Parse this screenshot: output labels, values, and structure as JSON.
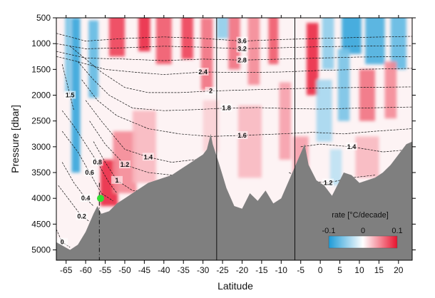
{
  "chart_data": {
    "type": "heatmap",
    "title": "",
    "xlabel": "Latitude",
    "ylabel": "Pressure [dbar]",
    "xlim": [
      -67.5,
      23.5
    ],
    "ylim": [
      5200,
      500
    ],
    "x_ticks": [
      -65,
      -60,
      -55,
      -50,
      -45,
      -40,
      -35,
      -30,
      -25,
      -20,
      -15,
      -10,
      -5,
      0,
      5,
      10,
      15,
      20
    ],
    "y_ticks": [
      500,
      1000,
      1500,
      2000,
      2500,
      3000,
      3500,
      4000,
      4500,
      5000
    ],
    "colorbar": {
      "label": "rate [°C/decade]",
      "min": -0.1,
      "max": 0.1,
      "ticks": [
        -0.1,
        0,
        0.1
      ],
      "colors": [
        "#1e9bd7",
        "#ffffff",
        "#e8122d"
      ]
    },
    "bottom_color": "#7f7f7f",
    "vertical_lines": [
      -26.5,
      -6.5
    ],
    "dashed_line_x": -56.5,
    "marker": {
      "x": -56.2,
      "y": 4000,
      "color": "#33dd33"
    },
    "bathymetry": [
      [
        -67.5,
        4850
      ],
      [
        -64,
        5000
      ],
      [
        -62,
        4900
      ],
      [
        -60,
        4650
      ],
      [
        -58,
        4300
      ],
      [
        -57,
        4150
      ],
      [
        -56,
        4300
      ],
      [
        -54,
        4250
      ],
      [
        -52,
        4100
      ],
      [
        -50,
        4000
      ],
      [
        -48,
        3900
      ],
      [
        -46,
        3800
      ],
      [
        -44,
        3700
      ],
      [
        -42,
        3650
      ],
      [
        -40,
        3600
      ],
      [
        -38,
        3550
      ],
      [
        -36,
        3450
      ],
      [
        -34,
        3350
      ],
      [
        -32,
        3250
      ],
      [
        -30,
        3150
      ],
      [
        -29,
        3050
      ],
      [
        -28,
        2750
      ],
      [
        -27.5,
        2950
      ],
      [
        -26,
        3300
      ],
      [
        -24,
        3800
      ],
      [
        -22,
        4150
      ],
      [
        -20,
        4200
      ],
      [
        -18,
        3900
      ],
      [
        -16,
        4050
      ],
      [
        -14,
        3850
      ],
      [
        -12,
        4100
      ],
      [
        -10,
        4000
      ],
      [
        -8,
        3650
      ],
      [
        -6,
        3300
      ],
      [
        -4,
        2950
      ],
      [
        -3,
        3350
      ],
      [
        -1,
        3650
      ],
      [
        1,
        3750
      ],
      [
        3,
        3950
      ],
      [
        5,
        3650
      ],
      [
        6,
        3500
      ],
      [
        8,
        3550
      ],
      [
        10,
        3700
      ],
      [
        12,
        3650
      ],
      [
        14,
        3600
      ],
      [
        16,
        3500
      ],
      [
        18,
        3350
      ],
      [
        20,
        3150
      ],
      [
        22,
        2950
      ],
      [
        23.5,
        2900
      ]
    ],
    "contours": [
      {
        "value": "3.6",
        "points": [
          [
            -67.5,
            800
          ],
          [
            -60,
            950
          ],
          [
            -50,
            900
          ],
          [
            -40,
            870
          ],
          [
            -30,
            900
          ],
          [
            -20,
            950
          ],
          [
            -10,
            920
          ],
          [
            0,
            900
          ],
          [
            10,
            880
          ],
          [
            23.5,
            860
          ]
        ]
      },
      {
        "value": "3.2",
        "points": [
          [
            -67.5,
            1000
          ],
          [
            -60,
            1100
          ],
          [
            -50,
            1080
          ],
          [
            -40,
            1050
          ],
          [
            -30,
            1070
          ],
          [
            -20,
            1100
          ],
          [
            -10,
            1080
          ],
          [
            0,
            1060
          ],
          [
            10,
            1050
          ],
          [
            23.5,
            1040
          ]
        ]
      },
      {
        "value": "2.8",
        "points": [
          [
            -67.5,
            1150
          ],
          [
            -60,
            1280
          ],
          [
            -50,
            1300
          ],
          [
            -40,
            1330
          ],
          [
            -30,
            1300
          ],
          [
            -20,
            1320
          ],
          [
            -10,
            1300
          ],
          [
            0,
            1280
          ],
          [
            10,
            1260
          ],
          [
            23.5,
            1250
          ]
        ]
      },
      {
        "value": "2.4",
        "points": [
          [
            -67.5,
            1250
          ],
          [
            -62,
            1350
          ],
          [
            -55,
            1500
          ],
          [
            -48,
            1550
          ],
          [
            -40,
            1600
          ],
          [
            -30,
            1550
          ],
          [
            -20,
            1560
          ],
          [
            -10,
            1550
          ],
          [
            0,
            1520
          ],
          [
            10,
            1500
          ],
          [
            23.5,
            1480
          ]
        ]
      },
      {
        "value": "2",
        "points": [
          [
            -64,
            1050
          ],
          [
            -60,
            1300
          ],
          [
            -56,
            1550
          ],
          [
            -50,
            1850
          ],
          [
            -44,
            1950
          ],
          [
            -36,
            1950
          ],
          [
            -28,
            1920
          ],
          [
            -20,
            1900
          ],
          [
            -10,
            1880
          ],
          [
            0,
            1860
          ],
          [
            10,
            1850
          ],
          [
            23.5,
            1840
          ]
        ]
      },
      {
        "value": "1.8",
        "points": [
          [
            -62,
            1350
          ],
          [
            -58,
            1700
          ],
          [
            -54,
            2000
          ],
          [
            -48,
            2250
          ],
          [
            -40,
            2300
          ],
          [
            -32,
            2280
          ],
          [
            -24,
            2250
          ],
          [
            -16,
            2240
          ],
          [
            -8,
            2260
          ],
          [
            0,
            2270
          ],
          [
            10,
            2250
          ],
          [
            23.5,
            2230
          ]
        ]
      },
      {
        "value": "1.6",
        "points": [
          [
            -61,
            1700
          ],
          [
            -57,
            2100
          ],
          [
            -52,
            2400
          ],
          [
            -44,
            2650
          ],
          [
            -36,
            2750
          ],
          [
            -28,
            2800
          ],
          [
            -20,
            2780
          ],
          [
            -10,
            2750
          ],
          [
            -2,
            2720
          ],
          [
            6,
            2750
          ],
          [
            14,
            2700
          ],
          [
            23.5,
            2650
          ]
        ]
      },
      {
        "value": "1.4",
        "points": [
          [
            -60,
            2100
          ],
          [
            -56,
            2500
          ],
          [
            -50,
            3050
          ],
          [
            -44,
            3200
          ],
          [
            -38,
            3300
          ],
          [
            -32,
            3250
          ]
        ]
      },
      {
        "value": "1.4",
        "points": [
          [
            -5,
            3000
          ],
          [
            0,
            2950
          ],
          [
            8,
            3000
          ],
          [
            16,
            3100
          ],
          [
            23.5,
            3050
          ]
        ]
      },
      {
        "value": "1.2",
        "points": [
          [
            -59,
            2500
          ],
          [
            -55,
            2950
          ],
          [
            -50,
            3350
          ],
          [
            -44,
            3500
          ],
          [
            -38,
            3550
          ]
        ]
      },
      {
        "value": "1.2",
        "points": [
          [
            -8,
            3500
          ],
          [
            -4,
            3650
          ],
          [
            2,
            3700
          ],
          [
            8,
            3600
          ],
          [
            14,
            3550
          ]
        ]
      },
      {
        "value": "1",
        "points": [
          [
            -58,
            2900
          ],
          [
            -55,
            3300
          ],
          [
            -52,
            3650
          ],
          [
            -48,
            3850
          ],
          [
            -45,
            3850
          ]
        ]
      },
      {
        "value": "0.8",
        "points": [
          [
            -66,
            2300
          ],
          [
            -63,
            2600
          ],
          [
            -60,
            2950
          ],
          [
            -57,
            3300
          ],
          [
            -54,
            3700
          ],
          [
            -52,
            3900
          ]
        ]
      },
      {
        "value": "0.6",
        "points": [
          [
            -66,
            2700
          ],
          [
            -62,
            3100
          ],
          [
            -59,
            3500
          ],
          [
            -56,
            3900
          ],
          [
            -53,
            4050
          ]
        ]
      },
      {
        "value": "0.4",
        "points": [
          [
            -66,
            3300
          ],
          [
            -63,
            3700
          ],
          [
            -60,
            4000
          ],
          [
            -58,
            4150
          ]
        ]
      },
      {
        "value": "0.2",
        "points": [
          [
            -67,
            3750
          ],
          [
            -64,
            4050
          ],
          [
            -61,
            4350
          ],
          [
            -59,
            4450
          ]
        ]
      },
      {
        "value": "0",
        "points": [
          [
            -67.5,
            4600
          ],
          [
            -66,
            4850
          ],
          [
            -64,
            4950
          ]
        ]
      },
      {
        "value": "1.5",
        "points": [
          [
            -66,
            1400
          ],
          [
            -65,
            1700
          ],
          [
            -64,
            2000
          ],
          [
            -63,
            2300
          ]
        ]
      }
    ],
    "anomaly_patches": [
      {
        "x": -62.5,
        "y": 2000,
        "w": 2.2,
        "h": 3000,
        "v": -0.09
      },
      {
        "x": -64.5,
        "y": 1200,
        "w": 1.5,
        "h": 1500,
        "v": -0.06
      },
      {
        "x": -58,
        "y": 1300,
        "w": 2.5,
        "h": 1500,
        "v": -0.07
      },
      {
        "x": -54,
        "y": 3700,
        "w": 4.5,
        "h": 900,
        "v": 0.09
      },
      {
        "x": -50,
        "y": 3300,
        "w": 6,
        "h": 1200,
        "v": 0.05
      },
      {
        "x": -45,
        "y": 3000,
        "w": 6,
        "h": 1400,
        "v": 0.03
      },
      {
        "x": -52,
        "y": 800,
        "w": 4,
        "h": 900,
        "v": 0.08
      },
      {
        "x": -45,
        "y": 700,
        "w": 3,
        "h": 900,
        "v": 0.09
      },
      {
        "x": -40,
        "y": 900,
        "w": 4,
        "h": 1000,
        "v": 0.07
      },
      {
        "x": -34,
        "y": 800,
        "w": 3,
        "h": 1000,
        "v": 0.08
      },
      {
        "x": -29,
        "y": 1200,
        "w": 3,
        "h": 1400,
        "v": 0.06
      },
      {
        "x": -22,
        "y": 900,
        "w": 3,
        "h": 1200,
        "v": 0.06
      },
      {
        "x": -17,
        "y": 1100,
        "w": 3,
        "h": 1400,
        "v": 0.05
      },
      {
        "x": -12,
        "y": 900,
        "w": 2.5,
        "h": 1000,
        "v": 0.07
      },
      {
        "x": -9,
        "y": 2500,
        "w": 3,
        "h": 1500,
        "v": 0.04
      },
      {
        "x": -18,
        "y": 2900,
        "w": 6,
        "h": 1400,
        "v": 0.03
      },
      {
        "x": -28,
        "y": 2600,
        "w": 4,
        "h": 1000,
        "v": 0.02
      },
      {
        "x": -2,
        "y": 1300,
        "w": 3,
        "h": 1400,
        "v": 0.09
      },
      {
        "x": 2,
        "y": 900,
        "w": 3,
        "h": 1200,
        "v": -0.05
      },
      {
        "x": 8,
        "y": 800,
        "w": 5,
        "h": 800,
        "v": -0.09
      },
      {
        "x": 14,
        "y": 900,
        "w": 5,
        "h": 1000,
        "v": -0.08
      },
      {
        "x": 20,
        "y": 900,
        "w": 4,
        "h": 1200,
        "v": -0.07
      },
      {
        "x": 6,
        "y": 1800,
        "w": 3,
        "h": 1400,
        "v": -0.06
      },
      {
        "x": 1,
        "y": 2300,
        "w": 4,
        "h": 1200,
        "v": -0.04
      },
      {
        "x": 12,
        "y": 2000,
        "w": 4,
        "h": 1000,
        "v": 0.06
      },
      {
        "x": 18,
        "y": 1900,
        "w": 3,
        "h": 1100,
        "v": 0.05
      },
      {
        "x": -5,
        "y": 3300,
        "w": 4,
        "h": 1000,
        "v": 0.04
      },
      {
        "x": 12,
        "y": 3200,
        "w": 6,
        "h": 800,
        "v": 0.03
      },
      {
        "x": 4,
        "y": 3400,
        "w": 3,
        "h": 700,
        "v": -0.03
      },
      {
        "x": -25,
        "y": 600,
        "w": 3,
        "h": 600,
        "v": -0.05
      }
    ]
  }
}
